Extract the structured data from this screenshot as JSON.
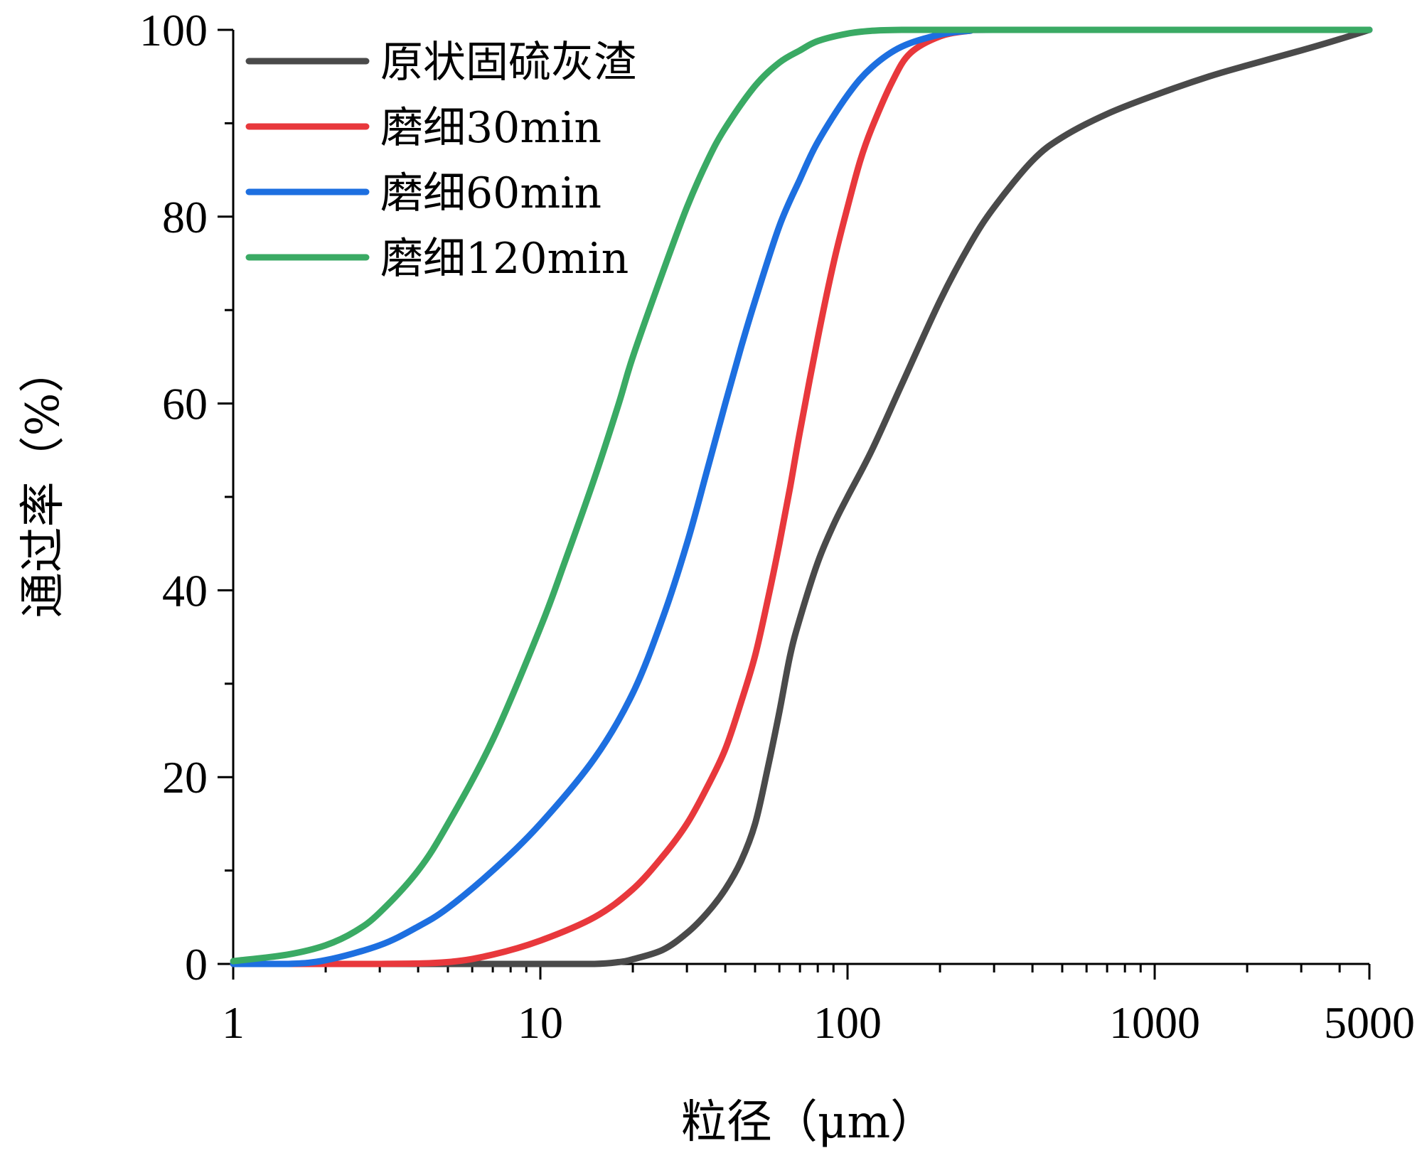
{
  "chart_data": {
    "type": "line",
    "title": "",
    "xlabel": "粒径（μm）",
    "ylabel": "通过率（%）",
    "xscale": "log",
    "xlim": [
      1,
      5000
    ],
    "ylim": [
      0,
      100
    ],
    "x_ticks": [
      1,
      10,
      100,
      1000,
      5000
    ],
    "x_tick_labels": [
      "1",
      "10",
      "100",
      "1000",
      "5000"
    ],
    "y_ticks": [
      0,
      20,
      40,
      60,
      80,
      100
    ],
    "y_tick_labels": [
      "0",
      "20",
      "40",
      "60",
      "80",
      "100"
    ],
    "legend_position": "top-left",
    "grid": false,
    "series": [
      {
        "name": "原状固硫灰渣",
        "color": "#4a4a4a",
        "x": [
          1,
          10,
          15,
          18,
          20,
          25,
          30,
          35,
          40,
          45,
          50,
          55,
          60,
          65,
          70,
          80,
          90,
          100,
          120,
          150,
          200,
          250,
          300,
          400,
          500,
          700,
          1000,
          1500,
          2000,
          3000,
          4000,
          5000
        ],
        "y": [
          0,
          0,
          0,
          0.2,
          0.5,
          1.5,
          3.3,
          5.5,
          8,
          11,
          15,
          21,
          27,
          33,
          37,
          43,
          47,
          50,
          55,
          62,
          71,
          77,
          81,
          86,
          88.5,
          91,
          93,
          95,
          96.2,
          97.8,
          99,
          100
        ]
      },
      {
        "name": "磨细30min",
        "color": "#e8383c",
        "x": [
          1,
          3,
          5,
          7,
          10,
          15,
          20,
          25,
          30,
          35,
          40,
          45,
          50,
          55,
          60,
          65,
          70,
          80,
          90,
          100,
          110,
          120,
          140,
          160,
          200,
          250,
          300,
          5000
        ],
        "y": [
          0,
          0,
          0.2,
          1,
          2.5,
          5,
          8,
          11.5,
          15,
          19,
          23,
          28,
          33,
          39,
          45,
          51,
          57,
          67,
          75,
          81,
          86,
          89.5,
          94.5,
          97.5,
          99.3,
          99.9,
          100,
          100
        ]
      },
      {
        "name": "磨细60min",
        "color": "#1d6fe0",
        "x": [
          1,
          1.5,
          2,
          3,
          4,
          5,
          7,
          10,
          15,
          20,
          25,
          30,
          35,
          40,
          45,
          50,
          60,
          70,
          80,
          100,
          120,
          150,
          200,
          250,
          300,
          5000
        ],
        "y": [
          0,
          0,
          0.4,
          2,
          4,
          6,
          10,
          15,
          22,
          29,
          37,
          45,
          53,
          60,
          66,
          71,
          79,
          84,
          88,
          93,
          96,
          98.2,
          99.5,
          99.9,
          100,
          100
        ]
      },
      {
        "name": "磨细120min",
        "color": "#3aaa64",
        "x": [
          1,
          1.5,
          2,
          2.5,
          3,
          4,
          5,
          7,
          10,
          12,
          15,
          18,
          20,
          25,
          30,
          35,
          40,
          50,
          60,
          70,
          80,
          100,
          120,
          150,
          200,
          300,
          5000
        ],
        "y": [
          0.3,
          1,
          2,
          3.5,
          5.5,
          10,
          15,
          24,
          36,
          43,
          52,
          60,
          65,
          74,
          81,
          86,
          89.5,
          94,
          96.5,
          97.8,
          98.8,
          99.6,
          99.9,
          100,
          100,
          100,
          100
        ]
      }
    ]
  }
}
